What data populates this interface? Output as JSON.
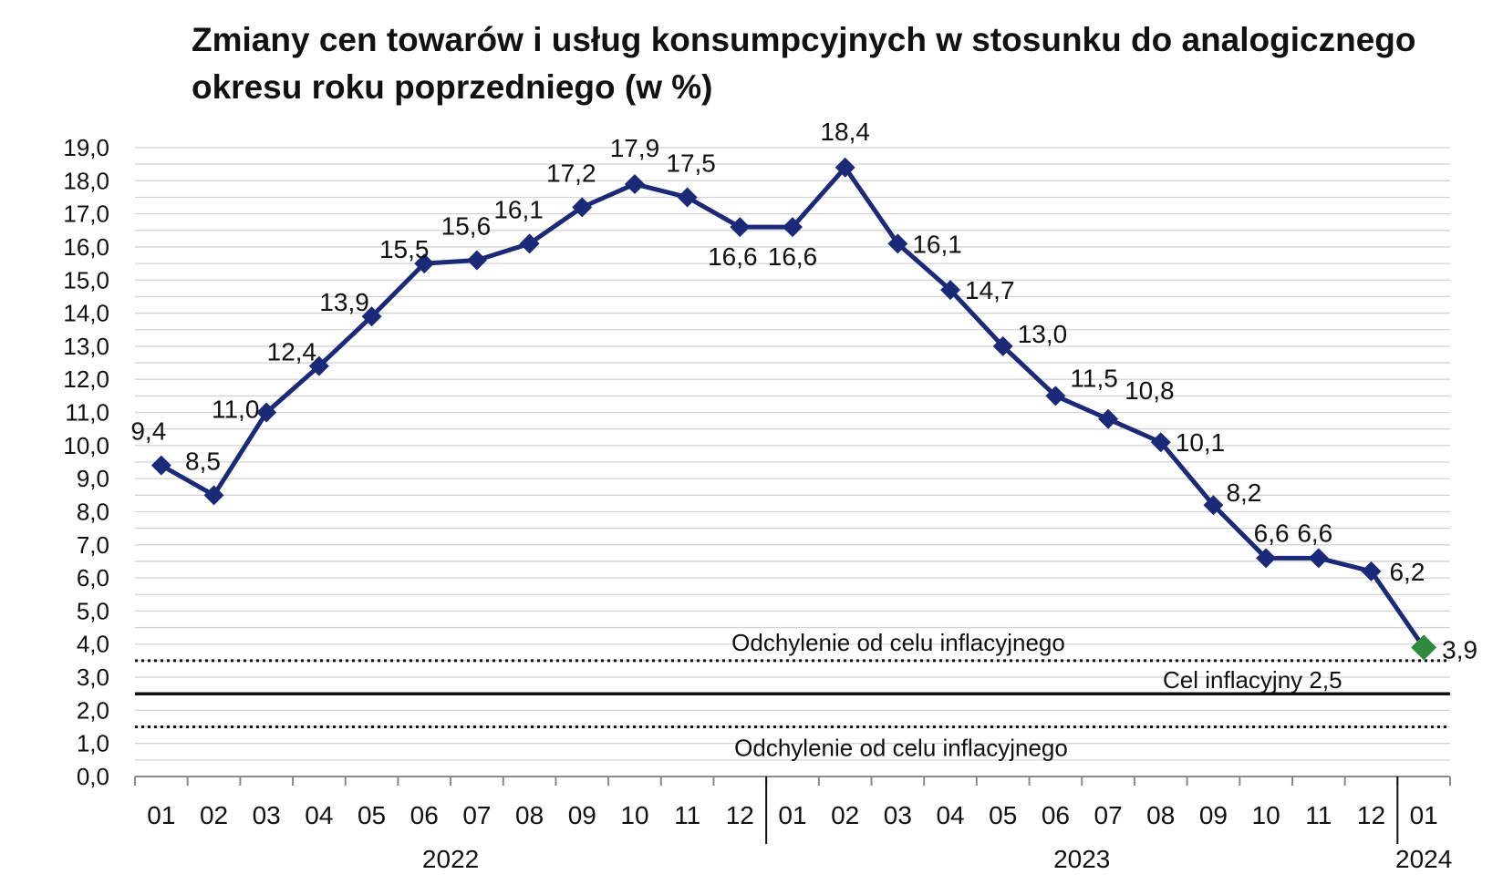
{
  "chart_data": {
    "type": "line",
    "title_lines": [
      "Zmiany cen towarów i usług konsumpcyjnych   w stosunku do analogicznego",
      "okresu roku poprzedniego (w %)"
    ],
    "categories": [
      "01",
      "02",
      "03",
      "04",
      "05",
      "06",
      "07",
      "08",
      "09",
      "10",
      "11",
      "12",
      "01",
      "02",
      "03",
      "04",
      "05",
      "06",
      "07",
      "08",
      "09",
      "10",
      "11",
      "12",
      "01"
    ],
    "year_groups": [
      {
        "label": "2022",
        "start": 0,
        "end": 11
      },
      {
        "label": "2023",
        "start": 12,
        "end": 23
      },
      {
        "label": "2024",
        "start": 24,
        "end": 24
      }
    ],
    "series": [
      {
        "values": [
          9.4,
          8.5,
          11.0,
          12.4,
          13.9,
          15.5,
          15.6,
          16.1,
          17.2,
          17.9,
          17.5,
          16.6,
          16.6,
          18.4,
          16.1,
          14.7,
          13.0,
          11.5,
          10.8,
          10.1,
          8.2,
          6.6,
          6.6,
          6.2,
          3.9
        ],
        "labels": [
          "9,4",
          "8,5",
          "11,0",
          "12,4",
          "13,9",
          "15,5",
          "15,6",
          "16,1",
          "17,2",
          "17,9",
          "17,5",
          "16,6",
          "16,6",
          "18,4",
          "16,1",
          "14,7",
          "13,0",
          "11,5",
          "10,8",
          "10,1",
          "8,2",
          "6,6",
          "6,6",
          "6,2",
          "3,9"
        ],
        "color": "#1b2a78",
        "marker": "diamond",
        "last_point_color": "#2e8b3e"
      }
    ],
    "yticks": [
      "0,0",
      "1,0",
      "2,0",
      "3,0",
      "4,0",
      "5,0",
      "6,0",
      "7,0",
      "8,0",
      "9,0",
      "10,0",
      "11,0",
      "12,0",
      "13,0",
      "14,0",
      "15,0",
      "16,0",
      "17,0",
      "18,0",
      "19,0"
    ],
    "ylim": [
      0,
      19
    ],
    "grid": true,
    "reference_lines": [
      {
        "value": 3.5,
        "style": "dotted",
        "label": "Odchylenie od celu inflacyjnego"
      },
      {
        "value": 2.5,
        "style": "solid",
        "label": "Cel inflacyjny 2,5"
      },
      {
        "value": 1.5,
        "style": "dotted",
        "label": "Odchylenie od celu inflacyjnego"
      }
    ]
  }
}
